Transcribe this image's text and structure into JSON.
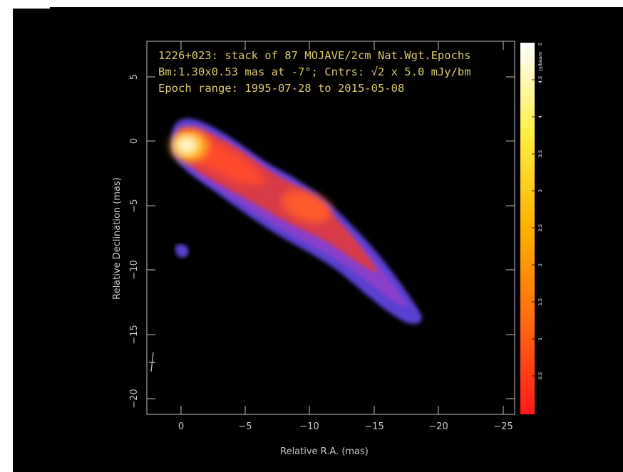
{
  "annotation": {
    "line1": "1226+023: stack of 87 MOJAVE/2cm Nat.Wgt.Epochs",
    "line2": "Bm:1.30x0.53 mas at -7°; Cntrs: √2 x 5.0 mJy/bm",
    "line3": "Epoch range: 1995-07-28 to 2015-05-08"
  },
  "axes": {
    "xlabel": "Relative R.A. (mas)",
    "ylabel": "Relative Declination (mas)",
    "x_ticks": [
      "0",
      "−5",
      "−10",
      "−15",
      "−20",
      "−25"
    ],
    "y_ticks": [
      "5",
      "0",
      "−5",
      "−10",
      "−15",
      "−20"
    ]
  },
  "colorbar": {
    "unit": "Jy/beam",
    "ticks": [
      "5",
      "4.5",
      "4",
      "3.5",
      "3",
      "2.5",
      "2",
      "1.5",
      "1",
      "0.5"
    ]
  },
  "colors": {
    "background": "#000000",
    "annotation": "#d8c86a",
    "axes": "#c8c8c8"
  }
}
